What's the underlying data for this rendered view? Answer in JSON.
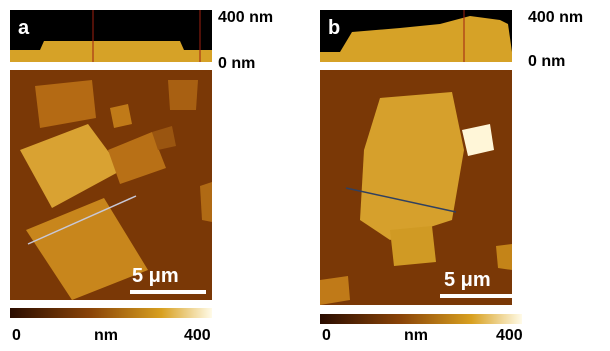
{
  "panels": [
    {
      "label": "a",
      "profile_top": "400 nm",
      "profile_bottom": "0 nm",
      "scale_bar": "5 μm",
      "colorbar": {
        "min": 0,
        "unit": "nm",
        "max": 400
      }
    },
    {
      "label": "b",
      "profile_top": "400 nm",
      "profile_bottom": "0 nm",
      "scale_bar": "5 μm",
      "colorbar": {
        "min": 0,
        "unit": "nm",
        "max": 400
      }
    }
  ]
}
